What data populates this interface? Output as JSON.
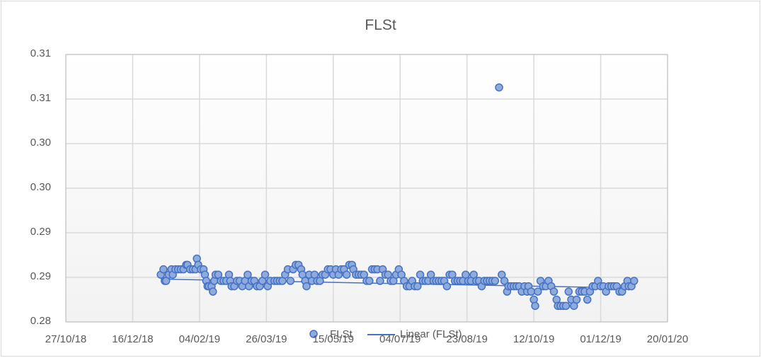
{
  "chart_data": {
    "type": "scatter",
    "title": "FLSt",
    "xlabel": "",
    "ylabel": "",
    "x_tick_labels": [
      "27/10/18",
      "16/12/18",
      "04/02/19",
      "26/03/19",
      "15/05/19",
      "04/07/19",
      "23/08/19",
      "12/10/19",
      "01/12/19",
      "20/01/20"
    ],
    "y_tick_labels": [
      "0.28",
      "0.29",
      "0.29",
      "0.30",
      "0.30",
      "0.31",
      "0.31"
    ],
    "y_tick_values": [
      0.28,
      0.285,
      0.29,
      0.295,
      0.3,
      0.305,
      0.31
    ],
    "ylim": [
      0.28,
      0.31
    ],
    "xlim": [
      "2018-10-27",
      "2020-01-20"
    ],
    "grid": true,
    "legend_position": "bottom",
    "legend": [
      "FLSt",
      "Linear (FLSt)"
    ],
    "series": [
      {
        "name": "FLSt",
        "marker": "circle",
        "color": "#4472c4",
        "points": [
          [
            "2019-01-06",
            0.2853
          ],
          [
            "2019-01-08",
            0.2859
          ],
          [
            "2019-01-09",
            0.2846
          ],
          [
            "2019-01-10",
            0.2846
          ],
          [
            "2019-01-12",
            0.2853
          ],
          [
            "2019-01-14",
            0.2859
          ],
          [
            "2019-01-15",
            0.2853
          ],
          [
            "2019-01-17",
            0.2859
          ],
          [
            "2019-01-19",
            0.2859
          ],
          [
            "2019-01-21",
            0.2859
          ],
          [
            "2019-01-23",
            0.2859
          ],
          [
            "2019-01-25",
            0.2864
          ],
          [
            "2019-01-26",
            0.2864
          ],
          [
            "2019-01-28",
            0.2859
          ],
          [
            "2019-01-30",
            0.2859
          ],
          [
            "2019-02-01",
            0.2859
          ],
          [
            "2019-02-02",
            0.2871
          ],
          [
            "2019-02-03",
            0.2864
          ],
          [
            "2019-02-05",
            0.2859
          ],
          [
            "2019-02-07",
            0.2859
          ],
          [
            "2019-02-08",
            0.2853
          ],
          [
            "2019-02-09",
            0.2846
          ],
          [
            "2019-02-10",
            0.284
          ],
          [
            "2019-02-11",
            0.284
          ],
          [
            "2019-02-13",
            0.284
          ],
          [
            "2019-02-14",
            0.2834
          ],
          [
            "2019-02-15",
            0.2846
          ],
          [
            "2019-02-16",
            0.2853
          ],
          [
            "2019-02-18",
            0.2853
          ],
          [
            "2019-02-20",
            0.2846
          ],
          [
            "2019-02-22",
            0.2846
          ],
          [
            "2019-02-24",
            0.2846
          ],
          [
            "2019-02-26",
            0.2853
          ],
          [
            "2019-02-27",
            0.2846
          ],
          [
            "2019-02-28",
            0.284
          ],
          [
            "2019-03-02",
            0.284
          ],
          [
            "2019-03-04",
            0.2846
          ],
          [
            "2019-03-06",
            0.2846
          ],
          [
            "2019-03-08",
            0.284
          ],
          [
            "2019-03-10",
            0.2846
          ],
          [
            "2019-03-12",
            0.2853
          ],
          [
            "2019-03-13",
            0.284
          ],
          [
            "2019-03-15",
            0.2846
          ],
          [
            "2019-03-17",
            0.2846
          ],
          [
            "2019-03-19",
            0.284
          ],
          [
            "2019-03-21",
            0.284
          ],
          [
            "2019-03-23",
            0.2846
          ],
          [
            "2019-03-25",
            0.2853
          ],
          [
            "2019-03-27",
            0.284
          ],
          [
            "2019-03-29",
            0.2846
          ],
          [
            "2019-04-01",
            0.2846
          ],
          [
            "2019-04-03",
            0.2846
          ],
          [
            "2019-04-05",
            0.2846
          ],
          [
            "2019-04-07",
            0.2846
          ],
          [
            "2019-04-09",
            0.2853
          ],
          [
            "2019-04-11",
            0.2859
          ],
          [
            "2019-04-13",
            0.2846
          ],
          [
            "2019-04-15",
            0.2859
          ],
          [
            "2019-04-17",
            0.2864
          ],
          [
            "2019-04-19",
            0.2864
          ],
          [
            "2019-04-21",
            0.2859
          ],
          [
            "2019-04-22",
            0.2853
          ],
          [
            "2019-04-24",
            0.2846
          ],
          [
            "2019-04-25",
            0.284
          ],
          [
            "2019-04-27",
            0.2853
          ],
          [
            "2019-04-29",
            0.2846
          ],
          [
            "2019-05-01",
            0.2853
          ],
          [
            "2019-05-03",
            0.2846
          ],
          [
            "2019-05-05",
            0.2846
          ],
          [
            "2019-05-07",
            0.2853
          ],
          [
            "2019-05-09",
            0.2853
          ],
          [
            "2019-05-11",
            0.2859
          ],
          [
            "2019-05-13",
            0.2859
          ],
          [
            "2019-05-15",
            0.2853
          ],
          [
            "2019-05-17",
            0.2859
          ],
          [
            "2019-05-19",
            0.2853
          ],
          [
            "2019-05-21",
            0.2859
          ],
          [
            "2019-05-23",
            0.2859
          ],
          [
            "2019-05-25",
            0.2853
          ],
          [
            "2019-05-27",
            0.2864
          ],
          [
            "2019-05-29",
            0.2864
          ],
          [
            "2019-05-30",
            0.2859
          ],
          [
            "2019-06-01",
            0.2853
          ],
          [
            "2019-06-03",
            0.2853
          ],
          [
            "2019-06-05",
            0.2853
          ],
          [
            "2019-06-07",
            0.2853
          ],
          [
            "2019-06-09",
            0.2846
          ],
          [
            "2019-06-11",
            0.2846
          ],
          [
            "2019-06-13",
            0.2859
          ],
          [
            "2019-06-15",
            0.2859
          ],
          [
            "2019-06-17",
            0.2859
          ],
          [
            "2019-06-19",
            0.2846
          ],
          [
            "2019-06-21",
            0.2859
          ],
          [
            "2019-06-23",
            0.2853
          ],
          [
            "2019-06-25",
            0.2853
          ],
          [
            "2019-06-27",
            0.2846
          ],
          [
            "2019-06-29",
            0.2846
          ],
          [
            "2019-07-01",
            0.2853
          ],
          [
            "2019-07-03",
            0.2859
          ],
          [
            "2019-07-05",
            0.2853
          ],
          [
            "2019-07-07",
            0.2846
          ],
          [
            "2019-07-09",
            0.284
          ],
          [
            "2019-07-11",
            0.284
          ],
          [
            "2019-07-13",
            0.2846
          ],
          [
            "2019-07-15",
            0.284
          ],
          [
            "2019-07-17",
            0.284
          ],
          [
            "2019-07-19",
            0.2853
          ],
          [
            "2019-07-21",
            0.2846
          ],
          [
            "2019-07-23",
            0.2846
          ],
          [
            "2019-07-25",
            0.2846
          ],
          [
            "2019-07-27",
            0.2853
          ],
          [
            "2019-07-29",
            0.2846
          ],
          [
            "2019-07-31",
            0.2846
          ],
          [
            "2019-08-02",
            0.2846
          ],
          [
            "2019-08-04",
            0.2846
          ],
          [
            "2019-08-06",
            0.2846
          ],
          [
            "2019-08-08",
            0.284
          ],
          [
            "2019-08-10",
            0.2853
          ],
          [
            "2019-08-12",
            0.2853
          ],
          [
            "2019-08-14",
            0.2846
          ],
          [
            "2019-08-16",
            0.2846
          ],
          [
            "2019-08-18",
            0.2846
          ],
          [
            "2019-08-20",
            0.2846
          ],
          [
            "2019-08-22",
            0.2853
          ],
          [
            "2019-08-24",
            0.2846
          ],
          [
            "2019-08-26",
            0.2846
          ],
          [
            "2019-08-28",
            0.2853
          ],
          [
            "2019-08-30",
            0.2846
          ],
          [
            "2019-09-01",
            0.2846
          ],
          [
            "2019-09-03",
            0.284
          ],
          [
            "2019-09-05",
            0.2846
          ],
          [
            "2019-09-07",
            0.2846
          ],
          [
            "2019-09-09",
            0.2846
          ],
          [
            "2019-09-11",
            0.2846
          ],
          [
            "2019-09-13",
            0.2846
          ],
          [
            "2019-09-16",
            0.3063
          ],
          [
            "2019-09-18",
            0.2853
          ],
          [
            "2019-09-20",
            0.2846
          ],
          [
            "2019-09-22",
            0.2834
          ],
          [
            "2019-09-23",
            0.284
          ],
          [
            "2019-09-25",
            0.284
          ],
          [
            "2019-09-27",
            0.284
          ],
          [
            "2019-09-29",
            0.284
          ],
          [
            "2019-10-01",
            0.284
          ],
          [
            "2019-10-03",
            0.2834
          ],
          [
            "2019-10-05",
            0.284
          ],
          [
            "2019-10-07",
            0.2834
          ],
          [
            "2019-10-08",
            0.284
          ],
          [
            "2019-10-10",
            0.2834
          ],
          [
            "2019-10-12",
            0.2825
          ],
          [
            "2019-10-13",
            0.2818
          ],
          [
            "2019-10-15",
            0.2834
          ],
          [
            "2019-10-17",
            0.2846
          ],
          [
            "2019-10-19",
            0.284
          ],
          [
            "2019-10-21",
            0.284
          ],
          [
            "2019-10-23",
            0.2846
          ],
          [
            "2019-10-25",
            0.284
          ],
          [
            "2019-10-27",
            0.2834
          ],
          [
            "2019-10-29",
            0.2825
          ],
          [
            "2019-10-30",
            0.2818
          ],
          [
            "2019-11-01",
            0.2818
          ],
          [
            "2019-11-03",
            0.2818
          ],
          [
            "2019-11-05",
            0.2818
          ],
          [
            "2019-11-07",
            0.2834
          ],
          [
            "2019-11-09",
            0.2825
          ],
          [
            "2019-11-11",
            0.2818
          ],
          [
            "2019-11-13",
            0.2825
          ],
          [
            "2019-11-15",
            0.2834
          ],
          [
            "2019-11-17",
            0.2834
          ],
          [
            "2019-11-19",
            0.2834
          ],
          [
            "2019-11-21",
            0.2825
          ],
          [
            "2019-11-23",
            0.2834
          ],
          [
            "2019-11-25",
            0.284
          ],
          [
            "2019-11-27",
            0.284
          ],
          [
            "2019-11-29",
            0.2846
          ],
          [
            "2019-12-01",
            0.284
          ],
          [
            "2019-12-03",
            0.284
          ],
          [
            "2019-12-05",
            0.2834
          ],
          [
            "2019-12-07",
            0.284
          ],
          [
            "2019-12-09",
            0.284
          ],
          [
            "2019-12-11",
            0.284
          ],
          [
            "2019-12-13",
            0.284
          ],
          [
            "2019-12-15",
            0.2834
          ],
          [
            "2019-12-17",
            0.2834
          ],
          [
            "2019-12-19",
            0.284
          ],
          [
            "2019-12-21",
            0.2846
          ],
          [
            "2019-12-22",
            0.284
          ],
          [
            "2019-12-24",
            0.284
          ],
          [
            "2019-12-26",
            0.2846
          ]
        ]
      },
      {
        "name": "Linear (FLSt)",
        "type": "line",
        "color": "#4472c4",
        "points": [
          [
            "2019-01-06",
            0.2848
          ],
          [
            "2019-12-26",
            0.2838
          ]
        ]
      }
    ]
  },
  "legend": {
    "items": [
      {
        "label": "FLSt",
        "symbol": "circle-marker"
      },
      {
        "label": "Linear (FLSt)",
        "symbol": "line"
      }
    ]
  }
}
